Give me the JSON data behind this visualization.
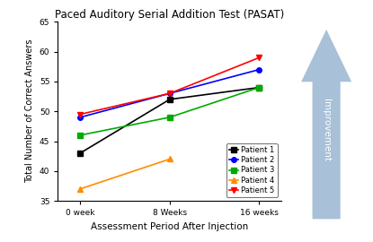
{
  "title": "Paced Auditory Serial Addition Test (PASAT)",
  "xlabel": "Assessment Period After Injection",
  "ylabel": "Total Number of Correct Answers",
  "x_ticks": [
    0,
    1,
    2
  ],
  "x_tick_labels": [
    "0 week",
    "8 Weeks",
    "16 weeks"
  ],
  "ylim": [
    35,
    65
  ],
  "yticks": [
    35,
    40,
    45,
    50,
    55,
    60,
    65
  ],
  "patients": [
    {
      "label": "Patient 1",
      "color": "#000000",
      "marker": "s",
      "data": [
        43,
        52,
        54
      ]
    },
    {
      "label": "Patient 2",
      "color": "#0000FF",
      "marker": "o",
      "data": [
        49,
        53,
        57
      ]
    },
    {
      "label": "Patient 3",
      "color": "#00AA00",
      "marker": "s",
      "data": [
        46,
        49,
        54
      ]
    },
    {
      "label": "Patient 4",
      "color": "#FF8C00",
      "marker": "^",
      "data": [
        37,
        42,
        null
      ]
    },
    {
      "label": "Patient 5",
      "color": "#FF0000",
      "marker": "v",
      "data": [
        49.5,
        53,
        59
      ]
    }
  ],
  "bg_color": "#ffffff",
  "plot_bg_color": "#ffffff",
  "arrow_color": "#a8c0d8",
  "arrow_label": "Improvement"
}
